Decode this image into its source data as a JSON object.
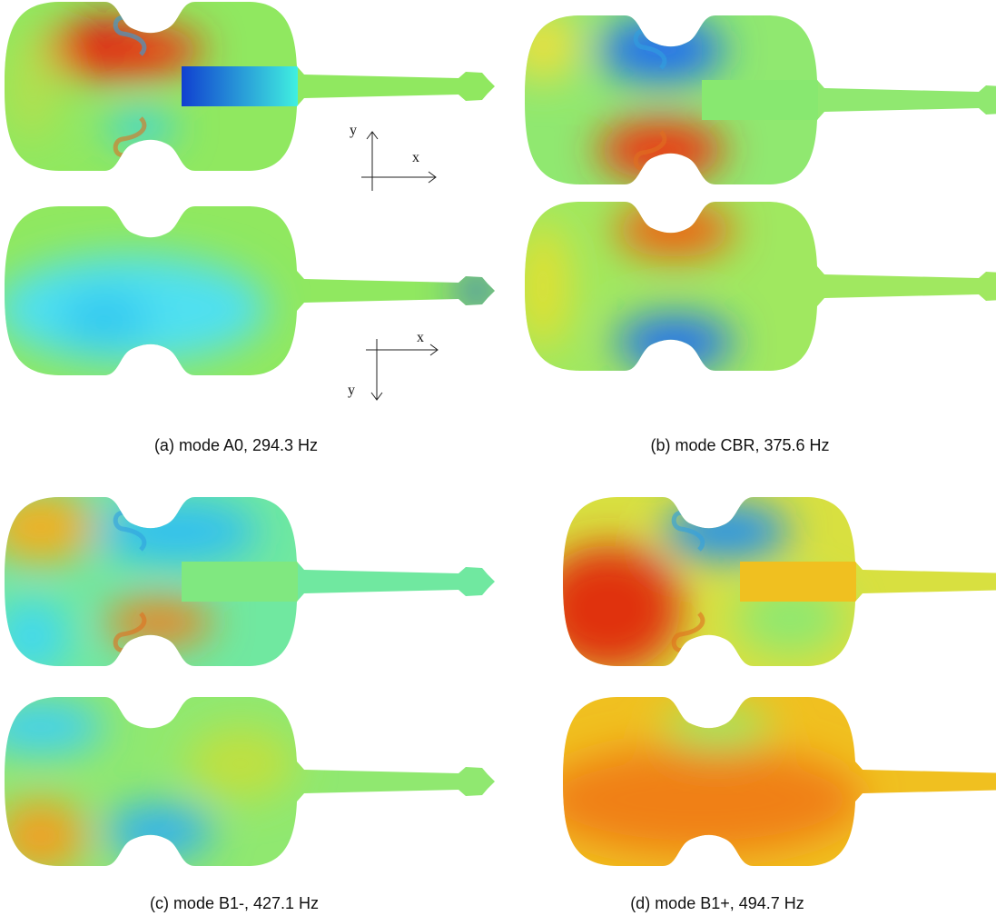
{
  "panels": [
    {
      "caption": "(a) mode A0, 294.3 Hz"
    },
    {
      "caption": "(b) mode CBR, 375.6 Hz"
    },
    {
      "caption": "(c) mode B1-, 427.1 Hz"
    },
    {
      "caption": "(d) mode B1+, 494.7 Hz"
    }
  ],
  "axes": [
    {
      "x": "x",
      "y": "y"
    },
    {
      "x": "x",
      "y": "y"
    }
  ]
}
